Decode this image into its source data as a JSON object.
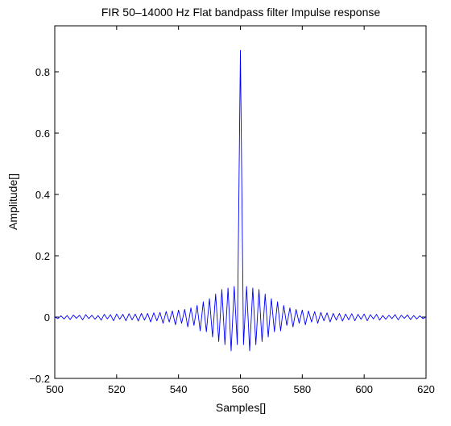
{
  "chart_data": {
    "type": "line",
    "title": "FIR 50–14000 Hz Flat bandpass filter Impulse response",
    "xlabel": "Samples[]",
    "ylabel": "Amplitude[]",
    "xlim": [
      500,
      620
    ],
    "ylim": [
      -0.2,
      0.95
    ],
    "xticks": [
      500,
      520,
      540,
      560,
      580,
      600,
      620
    ],
    "yticks": [
      -0.2,
      0,
      0.2,
      0.4,
      0.6,
      0.8
    ],
    "xtick_labels": [
      "500",
      "520",
      "540",
      "560",
      "580",
      "600",
      "620"
    ],
    "ytick_labels": [
      "−0.2",
      "0",
      "0.2",
      "0.4",
      "0.6",
      "0.8"
    ],
    "grid": false,
    "series": [
      {
        "color": "#0000ff",
        "x": [
          500,
          501,
          502,
          503,
          504,
          505,
          506,
          507,
          508,
          509,
          510,
          511,
          512,
          513,
          514,
          515,
          516,
          517,
          518,
          519,
          520,
          521,
          522,
          523,
          524,
          525,
          526,
          527,
          528,
          529,
          530,
          531,
          532,
          533,
          534,
          535,
          536,
          537,
          538,
          539,
          540,
          541,
          542,
          543,
          544,
          545,
          546,
          547,
          548,
          549,
          550,
          551,
          552,
          553,
          554,
          555,
          556,
          557,
          558,
          559,
          560,
          561,
          562,
          563,
          564,
          565,
          566,
          567,
          568,
          569,
          570,
          571,
          572,
          573,
          574,
          575,
          576,
          577,
          578,
          579,
          580,
          581,
          582,
          583,
          584,
          585,
          586,
          587,
          588,
          589,
          590,
          591,
          592,
          593,
          594,
          595,
          596,
          597,
          598,
          599,
          600,
          601,
          602,
          603,
          604,
          605,
          606,
          607,
          608,
          609,
          610,
          611,
          612,
          613,
          614,
          615,
          616,
          617,
          618,
          619,
          620
        ],
        "y": [
          0.0,
          -0.005,
          0.004,
          -0.006,
          0.005,
          -0.008,
          0.007,
          -0.004,
          0.006,
          -0.009,
          0.008,
          -0.005,
          0.006,
          -0.007,
          0.005,
          -0.01,
          0.009,
          -0.006,
          0.008,
          -0.012,
          0.01,
          -0.007,
          0.009,
          -0.012,
          0.011,
          -0.009,
          0.01,
          -0.013,
          0.012,
          -0.01,
          0.012,
          -0.016,
          0.014,
          -0.012,
          0.015,
          -0.02,
          0.018,
          -0.016,
          0.02,
          -0.025,
          0.023,
          -0.02,
          0.025,
          -0.032,
          0.03,
          -0.027,
          0.038,
          -0.045,
          0.05,
          -0.048,
          0.06,
          -0.065,
          0.075,
          -0.08,
          0.09,
          -0.09,
          0.095,
          -0.11,
          0.1,
          -0.09,
          0.87,
          -0.09,
          0.1,
          -0.11,
          0.095,
          -0.09,
          0.09,
          -0.08,
          0.075,
          -0.065,
          0.06,
          -0.048,
          0.05,
          -0.045,
          0.038,
          -0.027,
          0.03,
          -0.032,
          0.025,
          -0.02,
          0.023,
          -0.025,
          0.02,
          -0.016,
          0.018,
          -0.02,
          0.015,
          -0.012,
          0.014,
          -0.016,
          0.012,
          -0.01,
          0.012,
          -0.013,
          0.01,
          -0.009,
          0.011,
          -0.012,
          0.009,
          -0.007,
          0.01,
          -0.012,
          0.008,
          -0.006,
          0.009,
          -0.01,
          0.005,
          -0.007,
          0.006,
          -0.005,
          0.008,
          -0.009,
          0.006,
          -0.004,
          0.007,
          -0.008,
          0.005,
          -0.006,
          0.004,
          -0.005,
          0.0
        ]
      }
    ]
  }
}
